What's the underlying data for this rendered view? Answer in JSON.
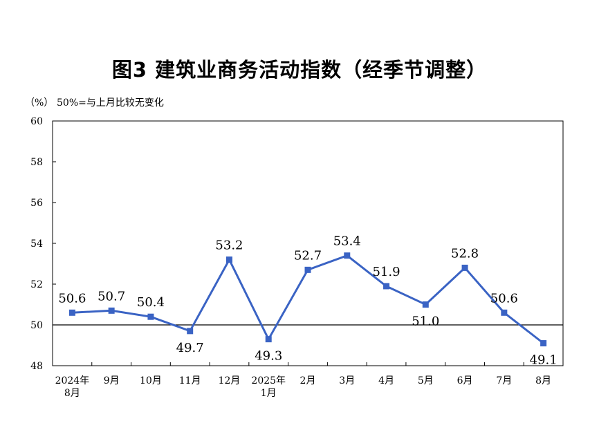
{
  "title": "图3  建筑业商务活动指数（经季节调整）",
  "unit": "（%）",
  "note": "50%=与上月比较无变化",
  "colors": {
    "line": "#3a63c4",
    "axis": "#000000"
  },
  "chart_data": {
    "type": "line",
    "title": "图3  建筑业商务活动指数（经季节调整）",
    "ylabel": "（%）",
    "xlabel": "",
    "ylim": [
      48,
      60
    ],
    "yticks": [
      48,
      50,
      52,
      54,
      56,
      58,
      60
    ],
    "reference_line": 50,
    "grid": false,
    "categories": [
      [
        "2024年",
        "8月"
      ],
      [
        "9月"
      ],
      [
        "10月"
      ],
      [
        "11月"
      ],
      [
        "12月"
      ],
      [
        "2025年",
        "1月"
      ],
      [
        "2月"
      ],
      [
        "3月"
      ],
      [
        "4月"
      ],
      [
        "5月"
      ],
      [
        "6月"
      ],
      [
        "7月"
      ],
      [
        "8月"
      ]
    ],
    "series": [
      {
        "values": [
          50.6,
          50.7,
          50.4,
          49.7,
          53.2,
          49.3,
          52.7,
          53.4,
          51.9,
          51.0,
          52.8,
          50.6,
          49.1
        ]
      }
    ],
    "data_labels": [
      "50.6",
      "50.7",
      "50.4",
      "49.7",
      "53.2",
      "49.3",
      "52.7",
      "53.4",
      "51.9",
      "51.0",
      "52.8",
      "50.6",
      "49.1"
    ]
  }
}
